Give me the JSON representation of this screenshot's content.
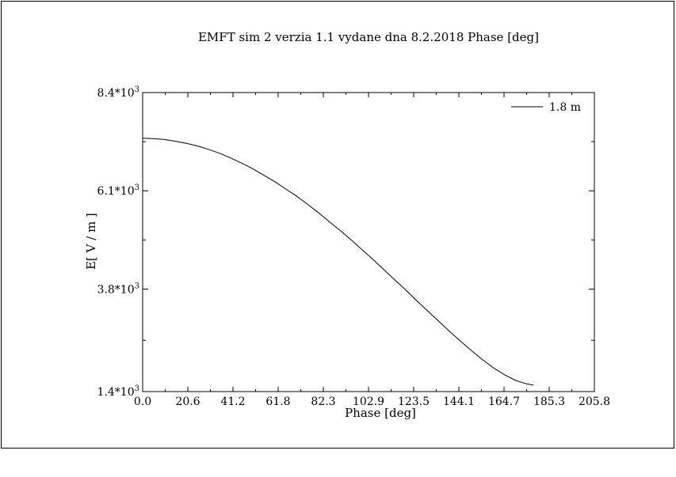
{
  "chart_data": {
    "type": "line",
    "title": "EMFT sim 2 verzia 1.1 vydane dna 8.2.2018     Phase   [deg]",
    "xlabel": "Phase   [deg]",
    "ylabel": "E[ V / m ]",
    "xlim": [
      0.0,
      205.8
    ],
    "ylim": [
      1.4,
      8.4
    ],
    "y_multiplier": "*10",
    "y_exponent": "3",
    "x_ticks": [
      "0.0",
      "20.6",
      "41.2",
      "61.8",
      "82.3",
      "102.9",
      "123.5",
      "144.1",
      "164.7",
      "185.3",
      "205.8"
    ],
    "y_ticks": [
      {
        "value": 1.4,
        "label": "1.4"
      },
      {
        "value": 3.8,
        "label": "3.8"
      },
      {
        "value": 6.1,
        "label": "6.1"
      },
      {
        "value": 8.4,
        "label": "8.4"
      }
    ],
    "grid": false,
    "legend_position": "top-right",
    "series": [
      {
        "name": "1.8 m",
        "color": "#000000",
        "x": [
          0,
          5,
          10,
          15,
          20,
          25,
          30,
          35,
          40,
          45,
          50,
          55,
          60,
          65,
          70,
          75,
          80,
          85,
          90,
          95,
          100,
          105,
          110,
          115,
          120,
          125,
          130,
          135,
          140,
          145,
          150,
          155,
          160,
          165,
          170,
          175,
          178
        ],
        "y": [
          7.33,
          7.32,
          7.3,
          7.26,
          7.21,
          7.15,
          7.07,
          6.98,
          6.87,
          6.75,
          6.62,
          6.47,
          6.32,
          6.15,
          5.98,
          5.79,
          5.59,
          5.38,
          5.17,
          4.95,
          4.72,
          4.49,
          4.25,
          4.01,
          3.77,
          3.52,
          3.28,
          3.04,
          2.8,
          2.57,
          2.35,
          2.14,
          1.95,
          1.79,
          1.66,
          1.58,
          1.55
        ]
      }
    ]
  }
}
